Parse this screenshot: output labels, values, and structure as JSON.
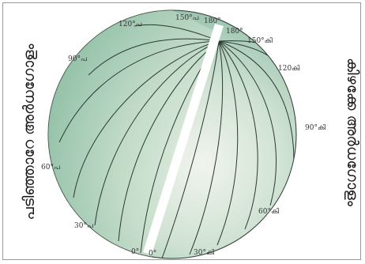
{
  "left_label": "പടിഞ്ഞാറേ അർധഗോളം",
  "right_label": "കിഴക്കേ അർധഗോളം",
  "west_labels": {
    "w120": "120°പ",
    "w150": "150°പ",
    "w90": "90°പ",
    "w60": "60°പ",
    "w30": "30°പ",
    "w0": "0°"
  },
  "east_labels": {
    "e180a": "180°",
    "e180b": "180°",
    "e150": "150°കി",
    "e120": "120കി",
    "e90": "90°കി",
    "e60": "60°കി",
    "e30": "30°കി",
    "e0": "0°"
  },
  "colors": {
    "globe_dark": "#7fb49c",
    "globe_light": "#e6efe0",
    "meridian_lines": "#2a3a30",
    "cut_band": "#ffffff"
  }
}
